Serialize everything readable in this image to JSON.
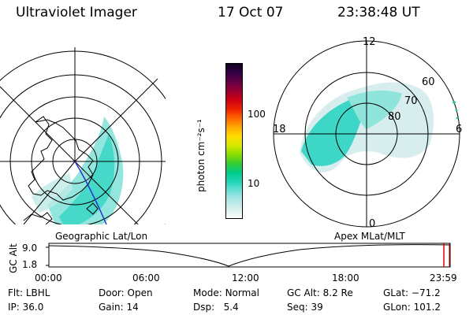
{
  "header": {
    "title": "Ultraviolet Imager",
    "date": "17 Oct 07",
    "time": "23:38:48 UT"
  },
  "left_panel": {
    "caption": "Geographic Lat/Lon"
  },
  "right_panel": {
    "caption": "Apex MLat/MLT",
    "mlt_labels": {
      "top": "12",
      "left": "18",
      "right": "6",
      "bottom": "0"
    },
    "lat_labels": [
      "60",
      "70",
      "80"
    ]
  },
  "colorbar": {
    "unit_label": "photon cm⁻²s⁻¹",
    "ticks": [
      "100",
      "10"
    ],
    "colors": [
      "#ffffff",
      "#d8eeee",
      "#b0e6e6",
      "#6fe0d8",
      "#22d4b8",
      "#00cc88",
      "#33cc33",
      "#88dd00",
      "#d8e800",
      "#ffdd00",
      "#ffaa00",
      "#ff6600",
      "#ee2200",
      "#cc0011",
      "#990033",
      "#660044",
      "#330044",
      "#110022"
    ]
  },
  "timeline": {
    "y_label": "GC Alt",
    "y_ticks": [
      "9.0",
      "1.8"
    ],
    "x_ticks": [
      "00:00",
      "06:00",
      "12:00",
      "18:00",
      "23:59"
    ],
    "marker_color": "#dd0000"
  },
  "status": {
    "row1": [
      {
        "key": "Flt:",
        "val": "LBHL"
      },
      {
        "key": "Door:",
        "val": "Open"
      },
      {
        "key": "Mode:",
        "val": "Normal"
      },
      {
        "key": "GC Alt:",
        "val": "8.2 Re"
      },
      {
        "key": "GLat:",
        "val": "−71.2"
      }
    ],
    "row2": [
      {
        "key": "IP:",
        "val": "36.0"
      },
      {
        "key": "Gain:",
        "val": "14"
      },
      {
        "key": "Dsp:",
        "val": "5.4"
      },
      {
        "key": "Seq:",
        "val": "39"
      },
      {
        "key": "GLon:",
        "val": "101.2"
      }
    ]
  }
}
